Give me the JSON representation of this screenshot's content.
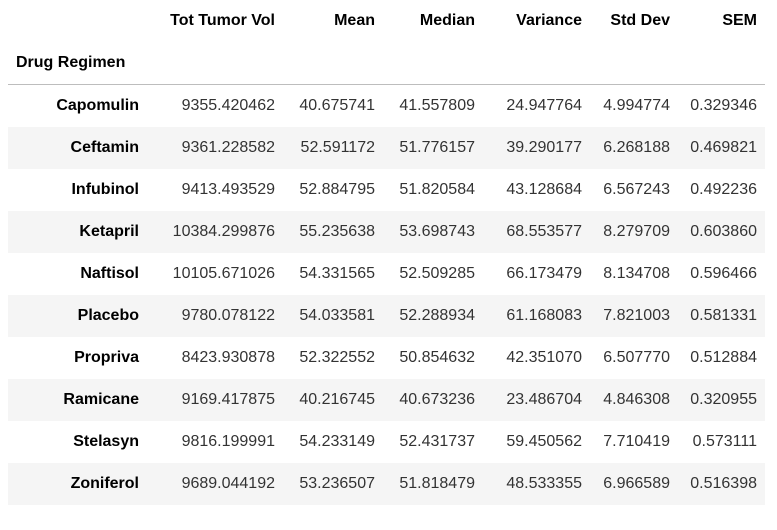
{
  "table": {
    "columns": [
      "Tot Tumor Vol",
      "Mean",
      "Median",
      "Variance",
      "Std Dev",
      "SEM"
    ],
    "index_name": "Drug Regimen",
    "rows": [
      {
        "label": "Capomulin",
        "values": [
          "9355.420462",
          "40.675741",
          "41.557809",
          "24.947764",
          "4.994774",
          "0.329346"
        ]
      },
      {
        "label": "Ceftamin",
        "values": [
          "9361.228582",
          "52.591172",
          "51.776157",
          "39.290177",
          "6.268188",
          "0.469821"
        ]
      },
      {
        "label": "Infubinol",
        "values": [
          "9413.493529",
          "52.884795",
          "51.820584",
          "43.128684",
          "6.567243",
          "0.492236"
        ]
      },
      {
        "label": "Ketapril",
        "values": [
          "10384.299876",
          "55.235638",
          "53.698743",
          "68.553577",
          "8.279709",
          "0.603860"
        ]
      },
      {
        "label": "Naftisol",
        "values": [
          "10105.671026",
          "54.331565",
          "52.509285",
          "66.173479",
          "8.134708",
          "0.596466"
        ]
      },
      {
        "label": "Placebo",
        "values": [
          "9780.078122",
          "54.033581",
          "52.288934",
          "61.168083",
          "7.821003",
          "0.581331"
        ]
      },
      {
        "label": "Propriva",
        "values": [
          "8423.930878",
          "52.322552",
          "50.854632",
          "42.351070",
          "6.507770",
          "0.512884"
        ]
      },
      {
        "label": "Ramicane",
        "values": [
          "9169.417875",
          "40.216745",
          "40.673236",
          "23.486704",
          "4.846308",
          "0.320955"
        ]
      },
      {
        "label": "Stelasyn",
        "values": [
          "9816.199991",
          "54.233149",
          "52.431737",
          "59.450562",
          "7.710419",
          "0.573111"
        ]
      },
      {
        "label": "Zoniferol",
        "values": [
          "9689.044192",
          "53.236507",
          "51.818479",
          "48.533355",
          "6.966589",
          "0.516398"
        ]
      }
    ]
  },
  "colors": {
    "stripe": "#f5f5f5",
    "header_rule": "#bdbdbd"
  }
}
